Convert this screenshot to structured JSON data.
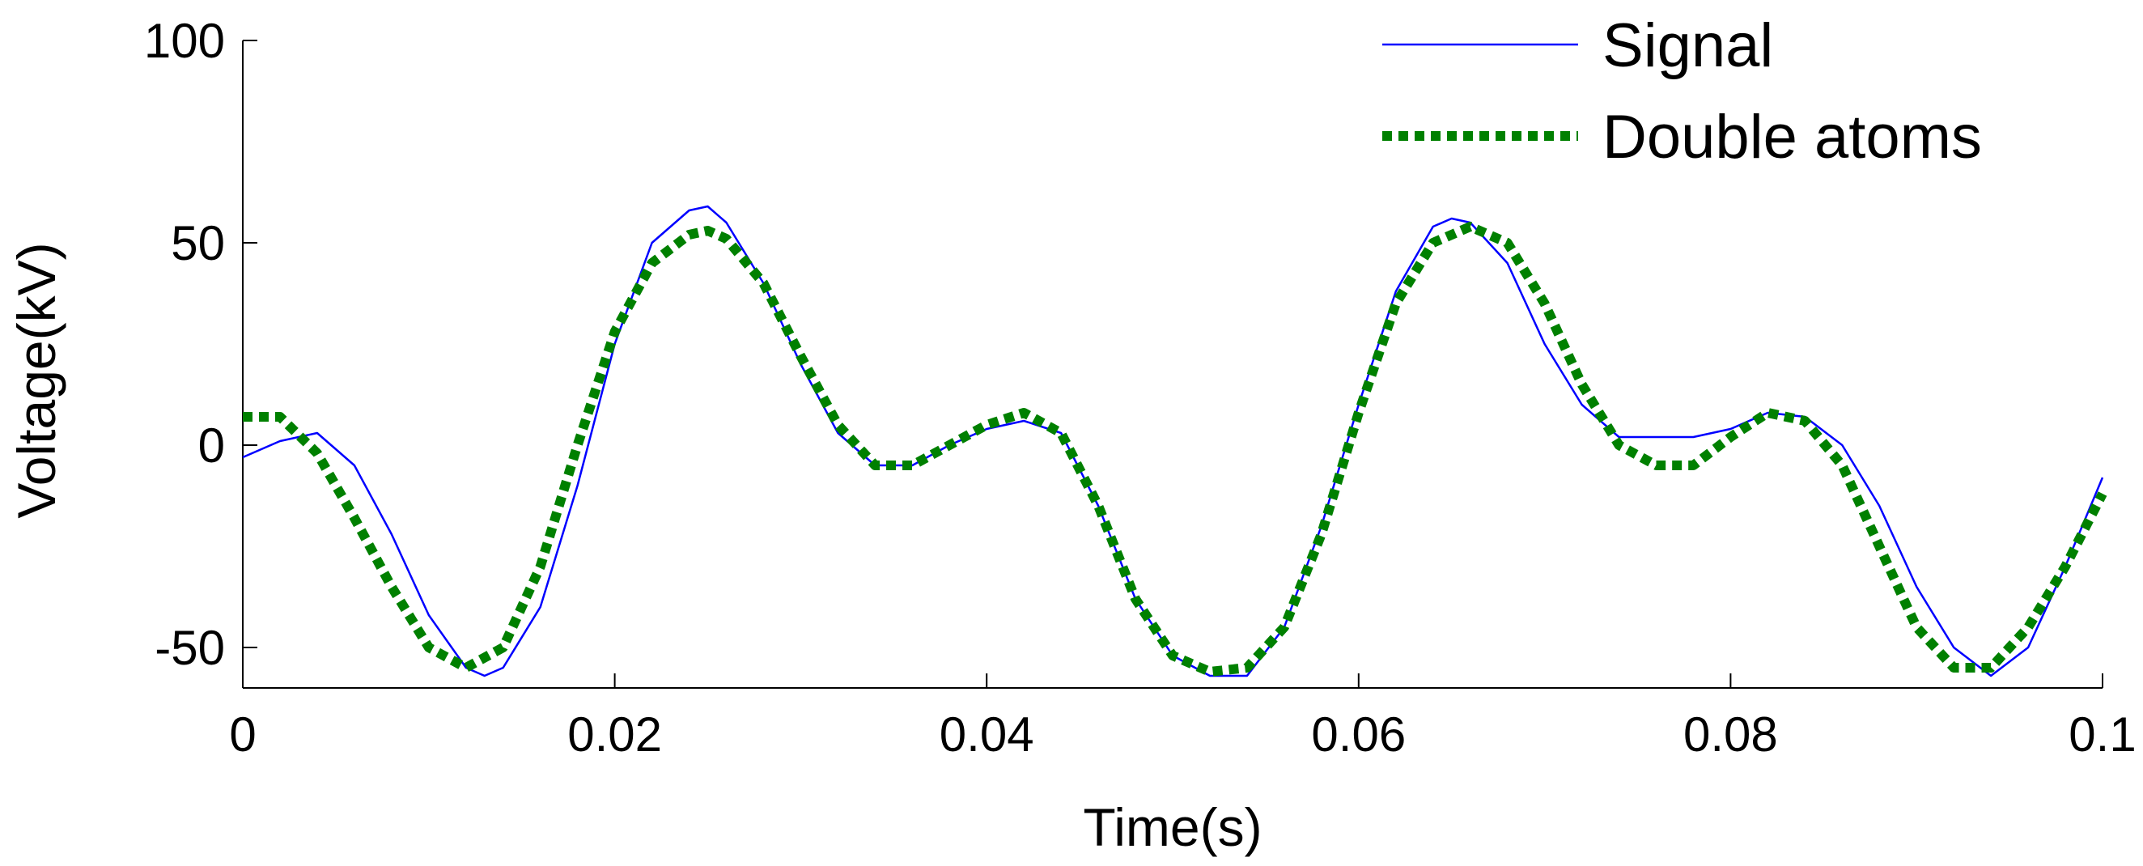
{
  "chart_data": {
    "type": "line",
    "title": "",
    "xlabel": "Time(s)",
    "ylabel": "Voltage(kV)",
    "xlim": [
      0,
      0.1
    ],
    "ylim": [
      -60,
      100
    ],
    "x_ticks": [
      0,
      0.02,
      0.04,
      0.06,
      0.08,
      0.1
    ],
    "x_tick_labels": [
      "0",
      "0.02",
      "0.04",
      "0.06",
      "0.08",
      "0.1"
    ],
    "y_ticks": [
      -50,
      0,
      50,
      100
    ],
    "y_tick_labels": [
      "-50",
      "0",
      "50",
      "100"
    ],
    "grid": false,
    "legend_position": "top-right",
    "series": [
      {
        "name": "Signal",
        "color": "#0000ff",
        "style": "solid",
        "x": [
          0,
          0.002,
          0.004,
          0.006,
          0.008,
          0.01,
          0.012,
          0.013,
          0.014,
          0.016,
          0.018,
          0.02,
          0.022,
          0.024,
          0.025,
          0.026,
          0.028,
          0.03,
          0.032,
          0.034,
          0.036,
          0.038,
          0.04,
          0.042,
          0.044,
          0.046,
          0.048,
          0.05,
          0.052,
          0.054,
          0.056,
          0.058,
          0.06,
          0.062,
          0.064,
          0.065,
          0.066,
          0.068,
          0.07,
          0.072,
          0.074,
          0.076,
          0.078,
          0.08,
          0.082,
          0.084,
          0.086,
          0.088,
          0.09,
          0.092,
          0.094,
          0.096,
          0.098,
          0.1
        ],
        "y": [
          -3,
          1,
          3,
          -5,
          -22,
          -42,
          -55,
          -57,
          -55,
          -40,
          -10,
          25,
          50,
          58,
          59,
          55,
          40,
          20,
          3,
          -5,
          -5,
          0,
          4,
          6,
          3,
          -15,
          -38,
          -52,
          -57,
          -57,
          -45,
          -20,
          10,
          38,
          54,
          56,
          55,
          45,
          25,
          10,
          2,
          2,
          2,
          4,
          8,
          7,
          0,
          -15,
          -35,
          -50,
          -57,
          -50,
          -30,
          -8
        ]
      },
      {
        "name": "Double atoms",
        "color": "#008000",
        "style": "dotted",
        "x": [
          0,
          0.002,
          0.004,
          0.006,
          0.008,
          0.01,
          0.012,
          0.014,
          0.016,
          0.018,
          0.02,
          0.022,
          0.024,
          0.025,
          0.026,
          0.028,
          0.03,
          0.032,
          0.034,
          0.036,
          0.038,
          0.04,
          0.042,
          0.044,
          0.046,
          0.048,
          0.05,
          0.052,
          0.054,
          0.056,
          0.058,
          0.06,
          0.062,
          0.064,
          0.066,
          0.068,
          0.07,
          0.072,
          0.074,
          0.076,
          0.078,
          0.08,
          0.082,
          0.084,
          0.086,
          0.088,
          0.09,
          0.092,
          0.094,
          0.096,
          0.098,
          0.1
        ],
        "y": [
          7,
          7,
          -2,
          -18,
          -35,
          -50,
          -55,
          -50,
          -30,
          0,
          28,
          45,
          52,
          53,
          51,
          40,
          22,
          5,
          -5,
          -5,
          0,
          5,
          8,
          3,
          -15,
          -38,
          -52,
          -56,
          -55,
          -45,
          -22,
          8,
          35,
          50,
          54,
          50,
          35,
          15,
          0,
          -5,
          -5,
          2,
          8,
          6,
          -5,
          -25,
          -45,
          -55,
          -55,
          -45,
          -30,
          -12
        ]
      }
    ]
  }
}
